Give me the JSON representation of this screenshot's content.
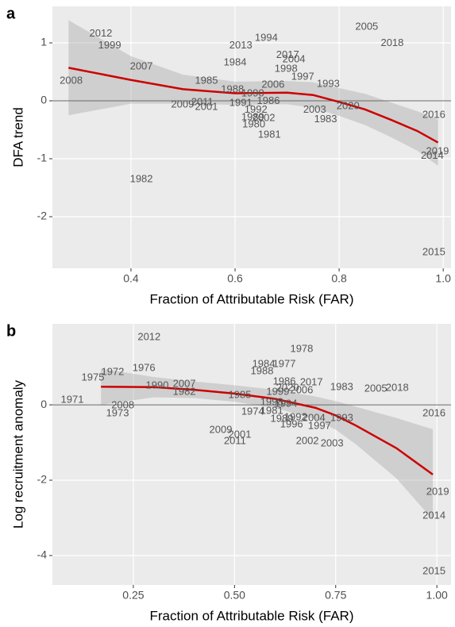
{
  "chart_data": [
    {
      "type": "scatter",
      "panel_label": "a",
      "xlabel": "Fraction of Attributable Risk (FAR)",
      "ylabel": "DFA trend",
      "xlim": [
        0.249,
        1.015
      ],
      "ylim": [
        -2.89,
        1.63
      ],
      "xticks": [
        0.4,
        0.6,
        0.8,
        {
          "value": 1.0,
          "label": "1.0"
        }
      ],
      "yticks": [
        -2,
        -1,
        0,
        1
      ],
      "hline": 0,
      "grid": true,
      "point_labels": [
        "2012",
        "1999",
        "2007",
        "2008",
        "1982",
        "2013",
        "1994",
        "1984",
        "2017",
        "2004",
        "1998",
        "1997",
        "1993",
        "1985",
        "2006",
        "1988",
        "1990",
        "1986",
        "2009",
        "2011",
        "2001",
        "1991",
        "1992",
        "2003",
        "2020",
        "1983",
        "2002",
        "1989",
        "1980",
        "1981",
        "2005",
        "2018",
        "2016",
        "2019",
        "2014",
        "2015"
      ],
      "x": [
        0.342,
        0.359,
        0.42,
        0.285,
        0.42,
        0.611,
        0.66,
        0.6,
        0.701,
        0.713,
        0.698,
        0.73,
        0.779,
        0.545,
        0.673,
        0.595,
        0.634,
        0.664,
        0.499,
        0.537,
        0.545,
        0.611,
        0.64,
        0.753,
        0.817,
        0.774,
        0.655,
        0.634,
        0.636,
        0.666,
        0.853,
        0.902,
        0.982,
        0.989,
        0.979,
        0.982
      ],
      "values": [
        1.16,
        0.95,
        0.59,
        0.34,
        -1.36,
        0.95,
        1.08,
        0.66,
        0.79,
        0.71,
        0.55,
        0.41,
        0.29,
        0.34,
        0.27,
        0.19,
        0.12,
        -0.01,
        -0.07,
        -0.03,
        -0.11,
        -0.04,
        -0.16,
        -0.16,
        -0.1,
        -0.32,
        -0.3,
        -0.29,
        -0.41,
        -0.59,
        1.27,
        0.99,
        -0.25,
        -0.88,
        -0.95,
        -2.62
      ],
      "fit": {
        "color": "#cc0000",
        "x": [
          0.28,
          0.4,
          0.5,
          0.6,
          0.7,
          0.75,
          0.8,
          0.85,
          0.9,
          0.95,
          0.99
        ],
        "values": [
          0.57,
          0.36,
          0.2,
          0.13,
          0.14,
          0.1,
          -0.02,
          -0.15,
          -0.33,
          -0.52,
          -0.72
        ],
        "lower": [
          -0.25,
          -0.05,
          -0.05,
          -0.07,
          -0.06,
          -0.12,
          -0.26,
          -0.42,
          -0.63,
          -0.86,
          -1.12
        ],
        "upper": [
          1.39,
          0.77,
          0.45,
          0.33,
          0.34,
          0.32,
          0.22,
          0.12,
          -0.03,
          -0.18,
          -0.32
        ]
      }
    },
    {
      "type": "scatter",
      "panel_label": "b",
      "xlabel": "Fraction of Attributable Risk (FAR)",
      "ylabel": "Log recruitment anomaly",
      "xlim": [
        0.05,
        1.035
      ],
      "ylim": [
        -4.78,
        2.15
      ],
      "xticks": [
        0.25,
        {
          "value": 0.5,
          "label": "0.50"
        },
        0.75,
        {
          "value": 1.0,
          "label": "1.00"
        }
      ],
      "yticks": [
        -4,
        -2,
        0
      ],
      "hline": 0,
      "grid": true,
      "point_labels": [
        "2012",
        "1975",
        "1972",
        "1976",
        "1990",
        "2007",
        "1982",
        "1971",
        "2008",
        "1973",
        "1978",
        "1984",
        "1977",
        "1988",
        "1986",
        "2020",
        "2017",
        "2006",
        "1999",
        "1983",
        "2005",
        "2018",
        "1985",
        "1974",
        "1981",
        "1994",
        "1998",
        "1989",
        "1992",
        "2004",
        "1993",
        "1996",
        "1997",
        "2009",
        "2001",
        "2011",
        "2002",
        "2003",
        "2016",
        "2019",
        "2014",
        "2015"
      ],
      "x": [
        0.289,
        0.15,
        0.199,
        0.276,
        0.309,
        0.376,
        0.376,
        0.099,
        0.224,
        0.211,
        0.666,
        0.572,
        0.623,
        0.568,
        0.623,
        0.631,
        0.69,
        0.666,
        0.607,
        0.765,
        0.849,
        0.902,
        0.513,
        0.545,
        0.592,
        0.627,
        0.592,
        0.617,
        0.651,
        0.696,
        0.765,
        0.641,
        0.71,
        0.466,
        0.513,
        0.501,
        0.68,
        0.741,
        0.993,
        1.002,
        0.993,
        0.993
      ],
      "values": [
        1.79,
        0.72,
        0.86,
        0.97,
        0.51,
        0.55,
        0.34,
        0.13,
        -0.02,
        -0.23,
        1.47,
        1.07,
        1.07,
        0.88,
        0.61,
        0.44,
        0.59,
        0.38,
        0.34,
        0.46,
        0.42,
        0.44,
        0.25,
        -0.19,
        -0.17,
        0.02,
        0.06,
        -0.38,
        -0.34,
        -0.36,
        -0.36,
        -0.53,
        -0.57,
        -0.67,
        -0.8,
        -0.97,
        -0.97,
        -1.03,
        -0.23,
        -2.32,
        -2.95,
        -4.42
      ],
      "fit": {
        "color": "#cc0000",
        "x": [
          0.17,
          0.3,
          0.4,
          0.5,
          0.6,
          0.7,
          0.75,
          0.8,
          0.9,
          0.99
        ],
        "values": [
          0.48,
          0.47,
          0.4,
          0.3,
          0.16,
          -0.08,
          -0.28,
          -0.55,
          -1.15,
          -1.85
        ],
        "lower": [
          0.0,
          0.2,
          0.18,
          0.08,
          -0.08,
          -0.38,
          -0.66,
          -1.05,
          -1.95,
          -3.05
        ],
        "upper": [
          0.96,
          0.74,
          0.62,
          0.52,
          0.4,
          0.22,
          0.1,
          -0.05,
          -0.35,
          -0.65
        ]
      }
    }
  ]
}
